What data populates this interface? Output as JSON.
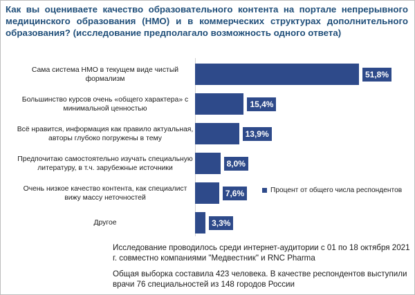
{
  "title": "Как вы оцениваете качество образовательного контента на портале непрерывного медицинского образования (НМО) и в коммерческих структурах дополнительного образования? (исследование предполагало возможность одного ответа)",
  "chart_data": {
    "type": "bar",
    "orientation": "horizontal",
    "categories": [
      "Сама система НМО в текущем виде чистый формализм",
      "Большинство курсов очень «общего характера» с минимальной ценностью",
      "Всё нравится, информация как правило актуальная, авторы глубоко погружены в тему",
      "Предпочитаю самостоятельно изучать специальную литературу, в т.ч. зарубежные источники",
      "Очень низкое качество контента, как специалист вижу массу неточностей",
      "Другое"
    ],
    "series": [
      {
        "name": "Процент от общего числа респондентов",
        "values": [
          51.8,
          15.4,
          13.9,
          8.0,
          7.6,
          3.3
        ],
        "labels": [
          "51,8%",
          "15,4%",
          "13,9%",
          "8,0%",
          "7,6%",
          "3,3%"
        ]
      }
    ],
    "xlim": [
      0,
      60
    ],
    "grid": false,
    "legend_position": "right",
    "colors": {
      "bar": "#2e4a8a",
      "title": "#1f4e79"
    }
  },
  "notes": [
    "Исследование проводилось среди интернет-аудитории с 01 по 18 октября 2021 г. совместно компаниями \"Медвестник\" и RNC Pharma",
    "Общая выборка составила 423 человека. В качестве респондентов выступили врачи 76 специальностей из 148 городов России"
  ]
}
